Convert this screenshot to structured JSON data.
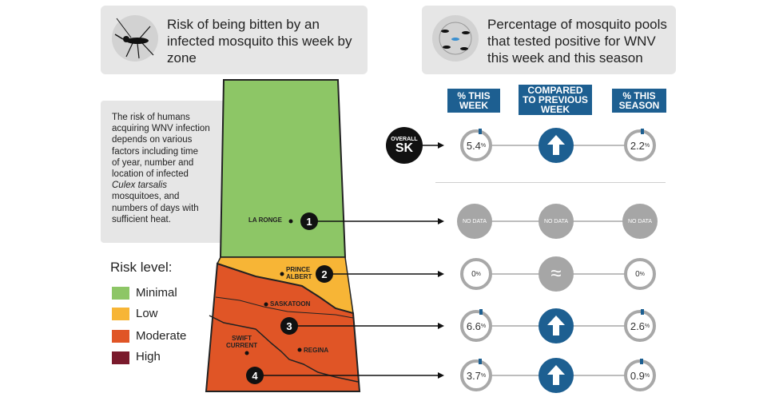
{
  "left_panel": {
    "title": "Risk of being bitten by an infected mosquito this week by zone",
    "icon": "mosquito-icon"
  },
  "right_panel": {
    "title": "Percentage of mosquito pools that tested positive for WNV this week and this season",
    "icon": "mosquitoes-circle-icon"
  },
  "description": {
    "line1": "The risk of humans",
    "line2": "acquiring WNV infection",
    "line3": "depends on various",
    "line4": "factors including time",
    "line5": "of year, number and",
    "line6": "location of infected",
    "line7": "Culex tarsalis",
    "line8": "mosquitoes, and",
    "line9": "numbers of days with",
    "line10": "sufficient heat."
  },
  "legend": {
    "title": "Risk level:",
    "items": [
      {
        "label": "Minimal",
        "color": "#8dc666"
      },
      {
        "label": "Low",
        "color": "#f7b536"
      },
      {
        "label": "Moderate",
        "color": "#e05526"
      },
      {
        "label": "High",
        "color": "#7a1a2c"
      }
    ]
  },
  "headers": {
    "this_week": "% THIS\nWEEK",
    "compared": "COMPARED\nTO PREVIOUS\nWEEK",
    "this_season": "% THIS\nSEASON"
  },
  "overall": {
    "label_top": "OVERALL",
    "label_big": "SK",
    "this_week": "5.4",
    "compared": "up",
    "this_season": "2.2"
  },
  "map_labels": {
    "la_ronge": "LA RONGE",
    "prince_albert_1": "PRINCE",
    "prince_albert_2": "ALBERT",
    "saskatoon": "SASKATOON",
    "swift_current_1": "SWIFT",
    "swift_current_2": "CURRENT",
    "regina": "REGINA"
  },
  "zones": [
    {
      "number": "1",
      "this_week": "NO DATA",
      "compared": "NO DATA",
      "this_season": "NO DATA"
    },
    {
      "number": "2",
      "this_week": "0",
      "compared": "≈",
      "this_season": "0"
    },
    {
      "number": "3",
      "this_week": "6.6",
      "compared": "up",
      "this_season": "2.6"
    },
    {
      "number": "4",
      "this_week": "3.7",
      "compared": "up",
      "this_season": "0.9"
    }
  ],
  "percent_sign": "%",
  "colors": {
    "accent": "#1d5f91",
    "minimal": "#8dc666",
    "low": "#f7b536",
    "moderate": "#e05526",
    "high": "#7a1a2c"
  }
}
